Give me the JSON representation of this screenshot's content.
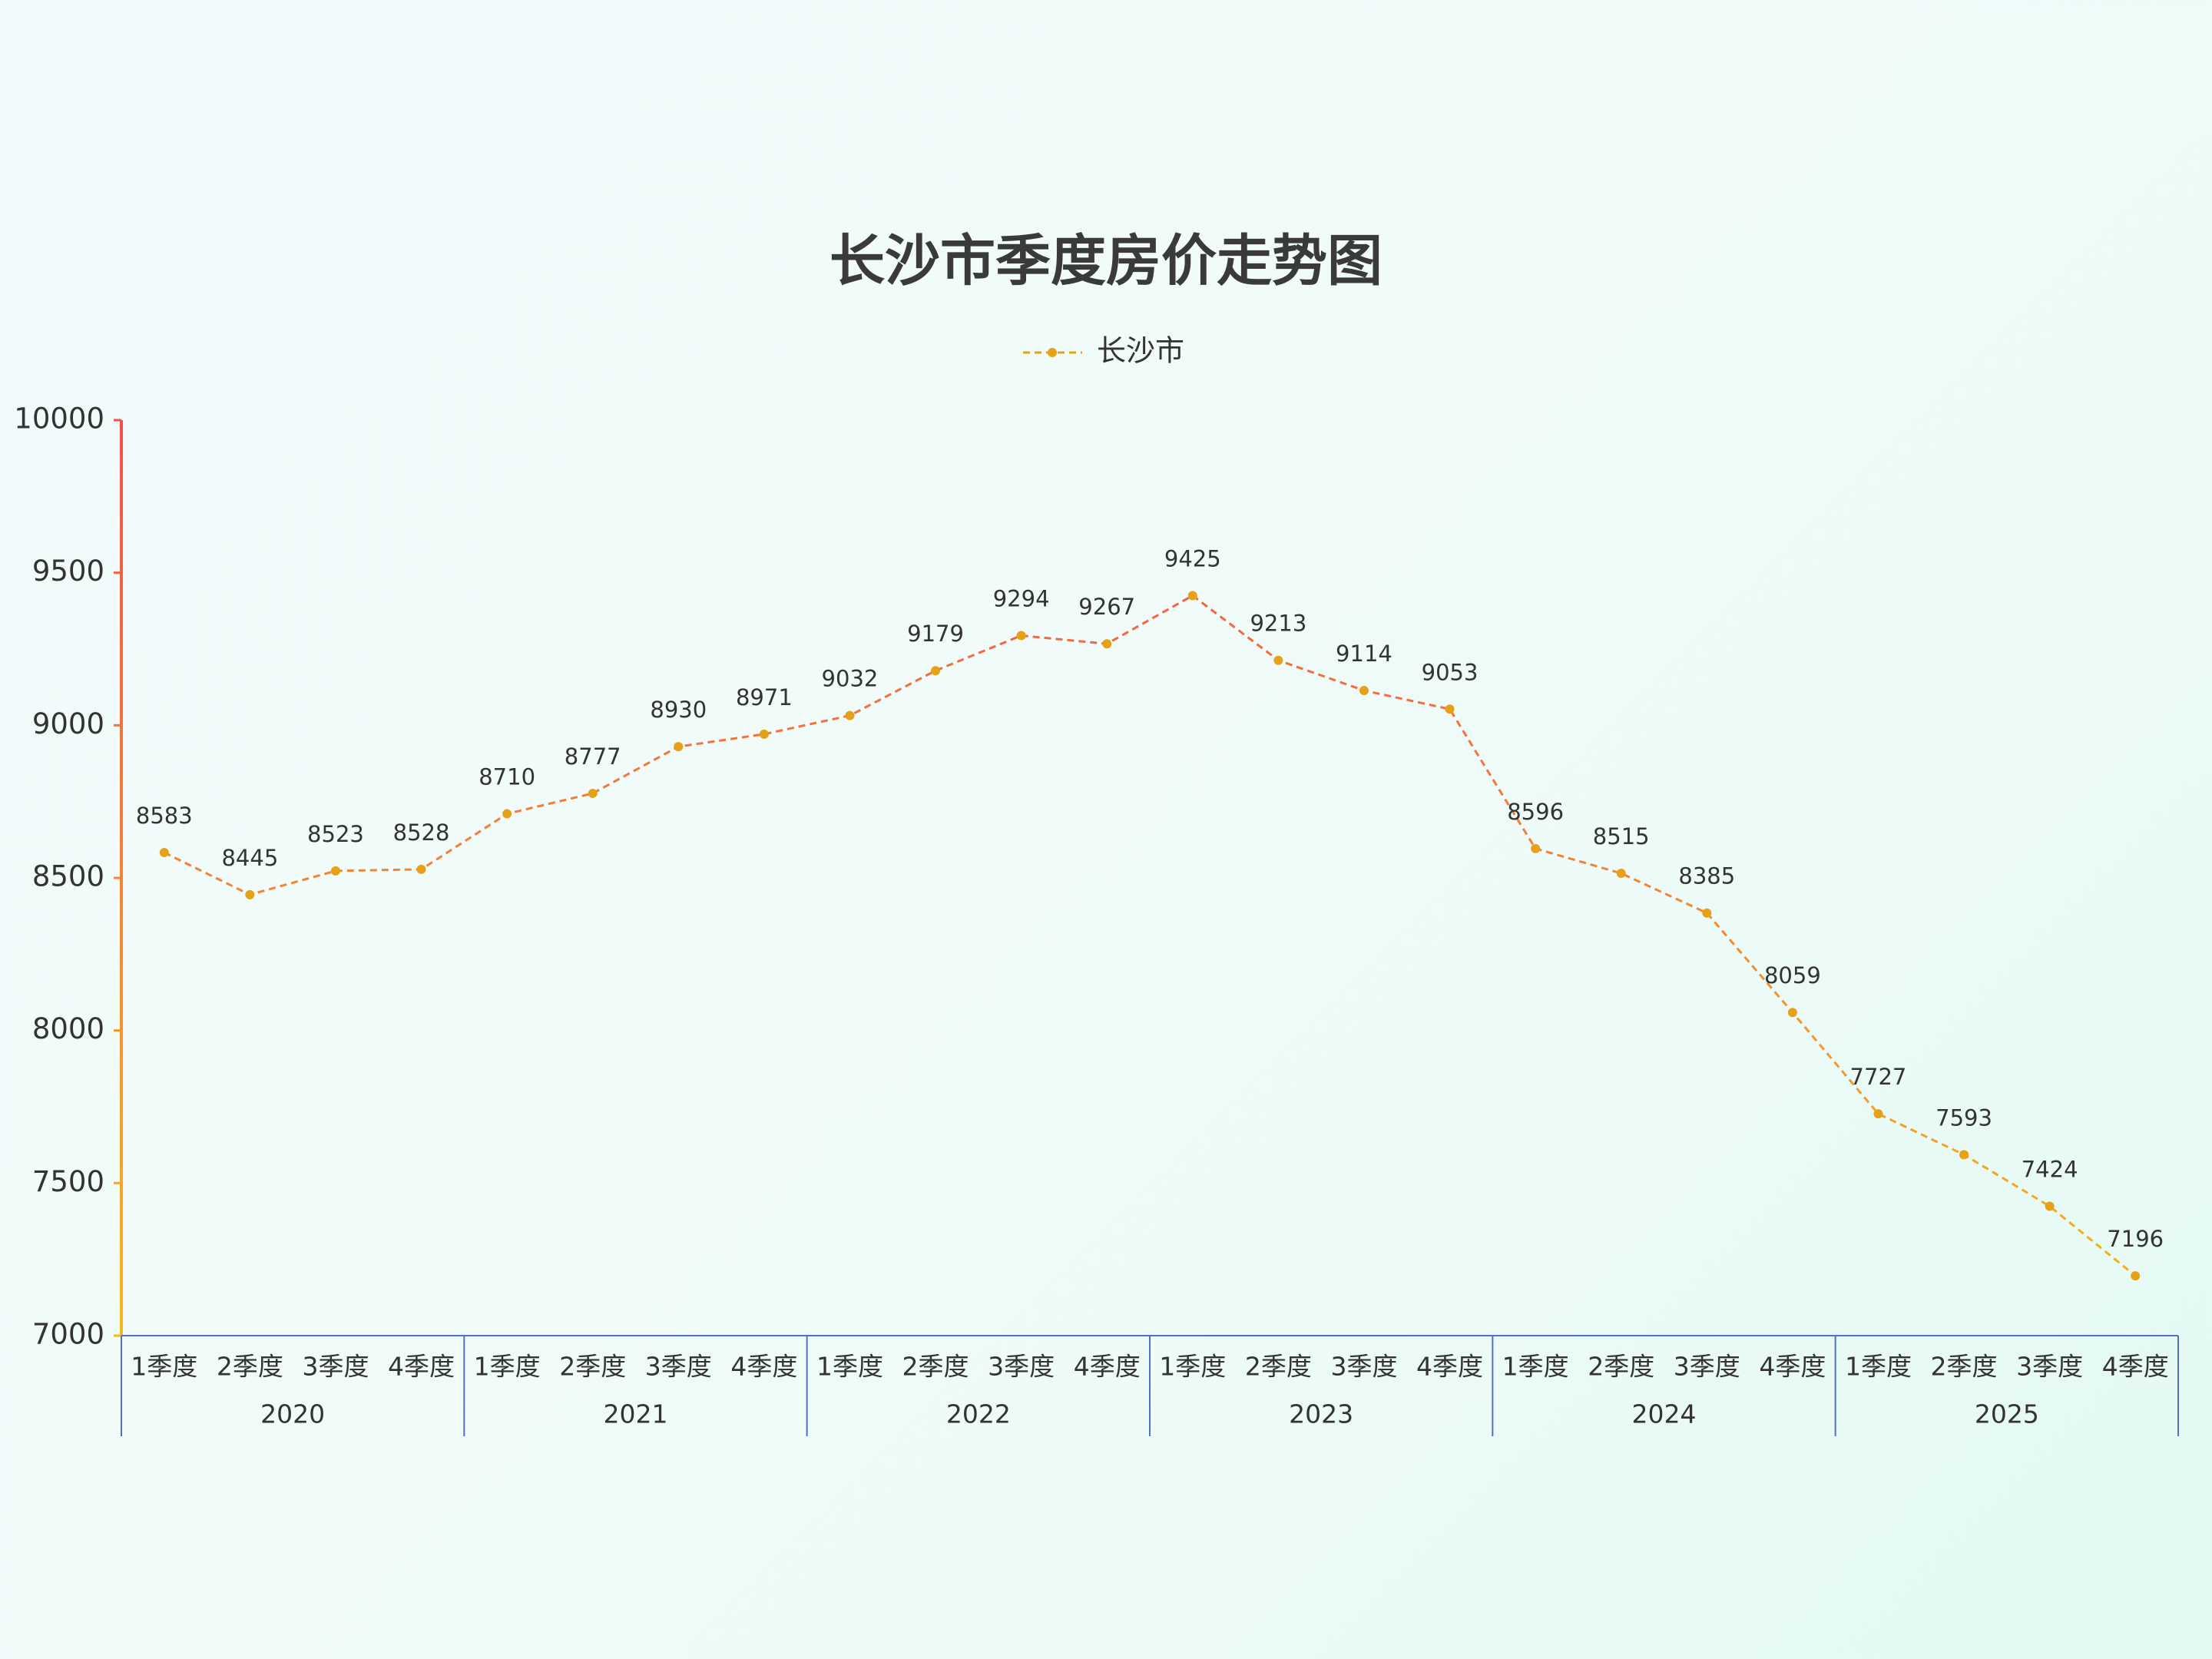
{
  "chart_data": {
    "type": "line",
    "title": "长沙市季度房价走势图",
    "categories": [
      "1季度",
      "2季度",
      "3季度",
      "4季度",
      "1季度",
      "2季度",
      "3季度",
      "4季度",
      "1季度",
      "2季度",
      "3季度",
      "4季度",
      "1季度",
      "2季度",
      "3季度",
      "4季度",
      "1季度",
      "2季度",
      "3季度",
      "4季度",
      "1季度",
      "2季度",
      "3季度",
      "4季度"
    ],
    "category_groups": [
      "2020",
      "2021",
      "2022",
      "2023",
      "2024",
      "2025"
    ],
    "series": [
      {
        "name": "长沙市",
        "color": "#e6a117",
        "values": [
          8583,
          8445,
          8523,
          8528,
          8710,
          8777,
          8930,
          8971,
          9032,
          9179,
          9294,
          9267,
          9425,
          9213,
          9114,
          9053,
          8596,
          8515,
          8385,
          8059,
          7727,
          7593,
          7424,
          7196
        ]
      }
    ],
    "line_gradient": [
      "#f5b81c",
      "#f2504a"
    ],
    "ylim": [
      7000,
      10000
    ],
    "yticks": [
      7000,
      7500,
      8000,
      8500,
      9000,
      9500,
      10000
    ],
    "dashed": true,
    "grid": false
  }
}
